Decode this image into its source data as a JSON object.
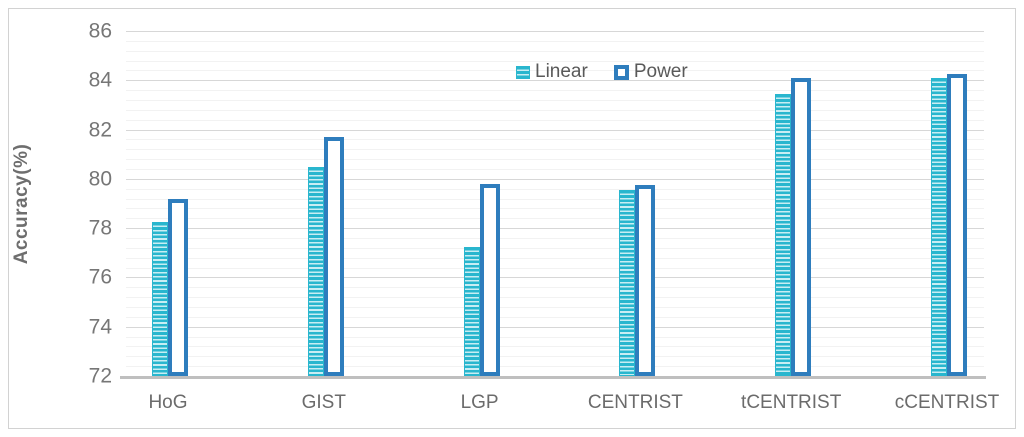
{
  "chart_data": {
    "type": "bar",
    "title": "",
    "xlabel": "",
    "ylabel": "Accuracy(%)",
    "categories": [
      "HoG",
      "GIST",
      "LGP",
      "CENTRIST",
      "tCENTRIST",
      "cCENTRIST"
    ],
    "series": [
      {
        "name": "Linear",
        "values": [
          78.25,
          80.5,
          77.25,
          79.55,
          83.45,
          84.1
        ],
        "style": "striped",
        "color": "#29b6ce",
        "stripe_light": "#c9edf3"
      },
      {
        "name": "Power",
        "values": [
          79.2,
          81.7,
          79.8,
          79.75,
          84.1,
          84.25
        ],
        "style": "outline",
        "color": "#2e7dbd",
        "fill": "#ffffff"
      }
    ],
    "ylim": [
      72,
      86
    ],
    "y_major_unit": 2,
    "y_minor_unit": 0.4,
    "yticks": [
      86,
      84,
      82,
      80,
      78,
      76,
      74,
      72
    ],
    "grid": "horizontal-major-and-minor",
    "legend_position": "top-center",
    "colors": {
      "major_gridline": "#d7d7d7",
      "minor_gridline": "#f2f2f2",
      "axis_baseline": "#bfbfbf",
      "tick_text": "#767676",
      "legend_text": "#595959"
    }
  }
}
